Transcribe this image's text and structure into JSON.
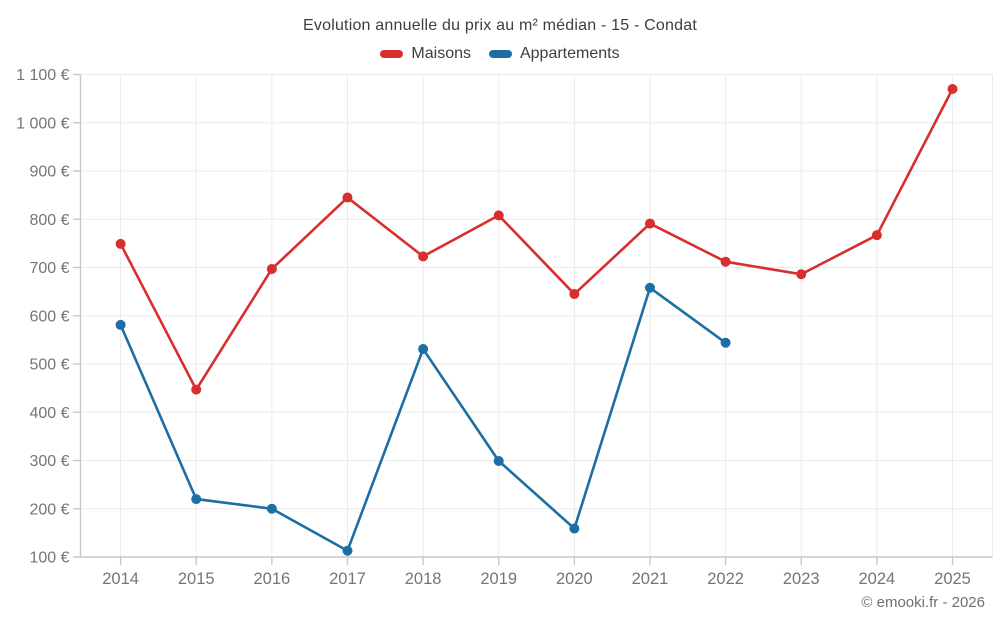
{
  "header": {
    "title": "Evolution annuelle du prix au m² médian - 15 - Condat"
  },
  "legend": {
    "items": [
      {
        "label": "Maisons",
        "color": "#d62f2e",
        "series": "maisons"
      },
      {
        "label": "Appartements",
        "color": "#1c6ea4",
        "series": "appartements"
      }
    ]
  },
  "footer": {
    "copyright": "© emooki.fr - 2026"
  },
  "chart_data": {
    "type": "line",
    "title": "Evolution annuelle du prix au m² médian - 15 - Condat",
    "x": [
      "2014",
      "2015",
      "2016",
      "2017",
      "2018",
      "2019",
      "2020",
      "2021",
      "2022",
      "2023",
      "2024",
      "2025"
    ],
    "series": [
      {
        "name": "Maisons",
        "color": "#d62f2e",
        "values": [
          749,
          447,
          697,
          845,
          723,
          808,
          645,
          791,
          712,
          686,
          767,
          1070
        ]
      },
      {
        "name": "Appartements",
        "color": "#1c6ea4",
        "values": [
          581,
          220,
          200,
          113,
          531,
          299,
          159,
          658,
          544,
          null,
          null,
          null
        ]
      }
    ],
    "xlabel": "",
    "ylabel": "",
    "unit": "€",
    "ylim": [
      100,
      1100
    ],
    "ytick_values": [
      100,
      200,
      300,
      400,
      500,
      600,
      700,
      800,
      900,
      1000,
      1100
    ],
    "ytick_labels": [
      "100 €",
      "200 €",
      "300 €",
      "400 €",
      "500 €",
      "600 €",
      "700 €",
      "800 €",
      "900 €",
      "1 000 €",
      "1 100 €"
    ],
    "grid": true,
    "legend_position": "top"
  },
  "style_colors": {
    "grid": "#ebebeb",
    "axis": "#c7c7c7",
    "tick_label": "#757575",
    "title_text": "#3e3e3e",
    "background": "#ffffff"
  }
}
